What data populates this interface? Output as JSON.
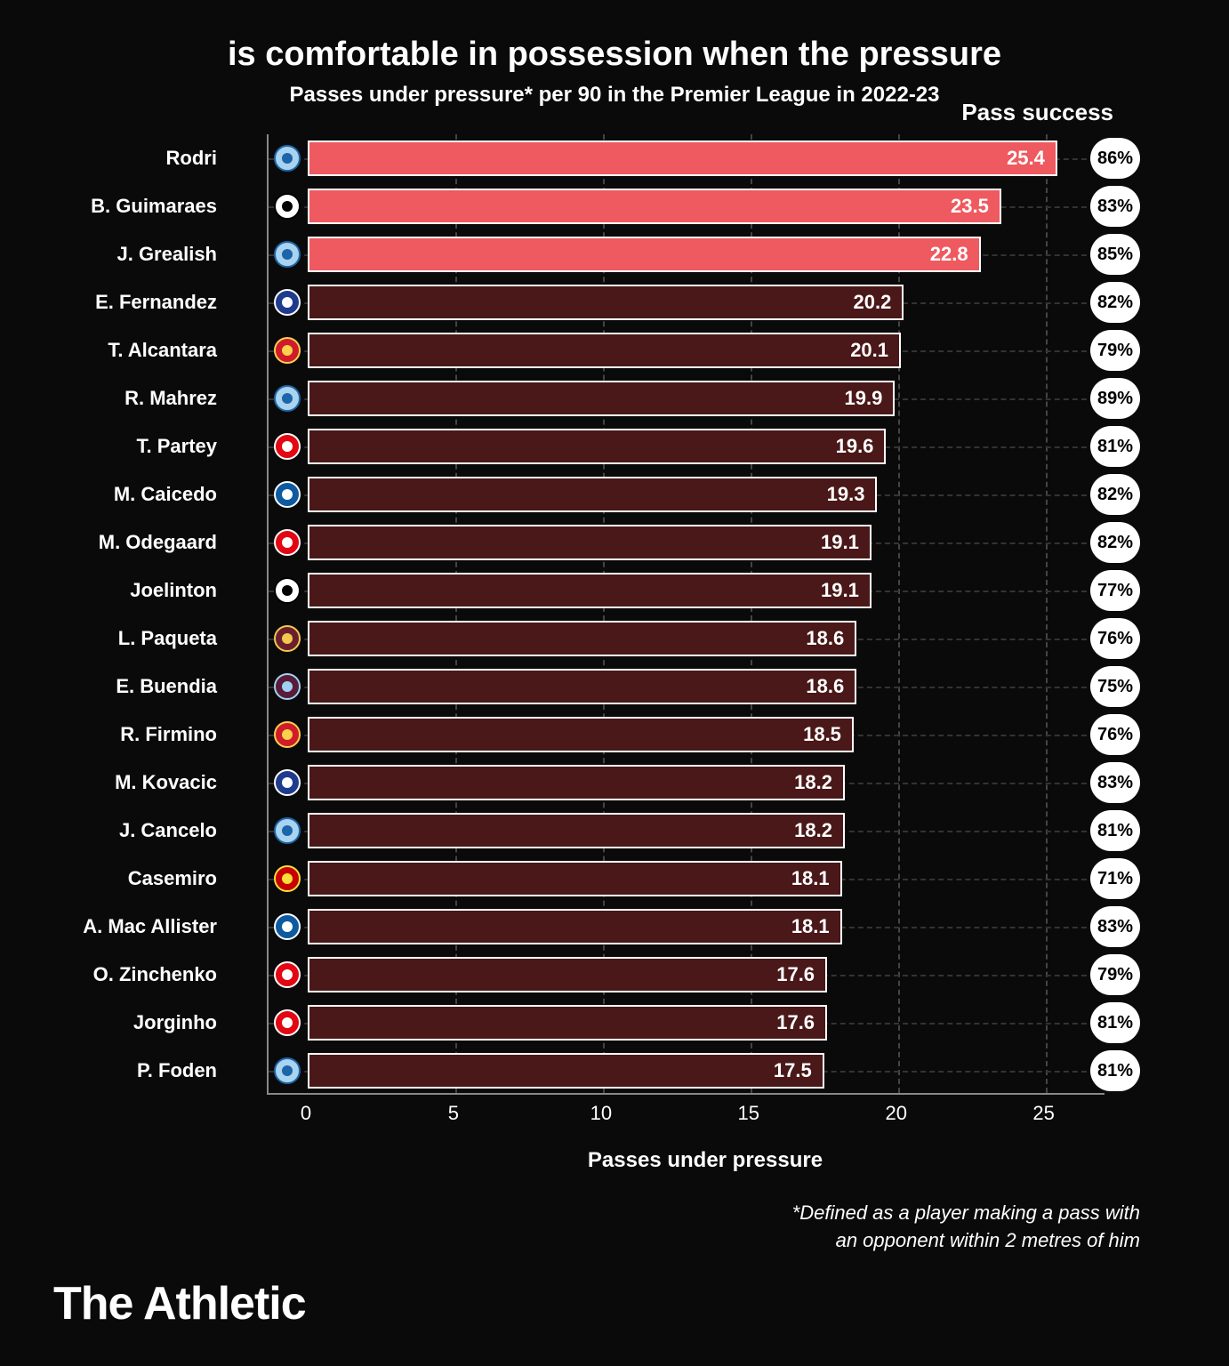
{
  "title": "is comfortable in possession when the pressure",
  "subtitle": "Passes under pressure* per 90 in the Premier League in 2022-23",
  "pass_success_header": "Pass success",
  "x_axis_label": "Passes under pressure",
  "footnote_line1": "*Defined as a player making a pass with",
  "footnote_line2": "an opponent within 2 metres of him",
  "brand": "The Athletic",
  "chart": {
    "type": "bar",
    "x_max": 27,
    "x_ticks": [
      0,
      5,
      10,
      15,
      20,
      25
    ],
    "bar_border": "#ffffff",
    "highlight_color": "#ee5a5f",
    "normal_color": "#4a1818",
    "grid_color": "#444444",
    "row_grid_color": "#333333",
    "pill_bg": "#ffffff",
    "pill_text": "#000000",
    "players": [
      {
        "name": "Rodri",
        "value": 25.4,
        "success": "86%",
        "highlight": true,
        "badge_bg": "#a8d4ef",
        "badge_fg": "#1d64a8"
      },
      {
        "name": "B. Guimaraes",
        "value": 23.5,
        "success": "83%",
        "highlight": true,
        "badge_bg": "#ffffff",
        "badge_fg": "#000000"
      },
      {
        "name": "J. Grealish",
        "value": 22.8,
        "success": "85%",
        "highlight": true,
        "badge_bg": "#a8d4ef",
        "badge_fg": "#1d64a8"
      },
      {
        "name": "E. Fernandez",
        "value": 20.2,
        "success": "82%",
        "highlight": false,
        "badge_bg": "#1f3b8e",
        "badge_fg": "#ffffff"
      },
      {
        "name": "T. Alcantara",
        "value": 20.1,
        "success": "79%",
        "highlight": false,
        "badge_bg": "#d01b2a",
        "badge_fg": "#f7d24b"
      },
      {
        "name": "R. Mahrez",
        "value": 19.9,
        "success": "89%",
        "highlight": false,
        "badge_bg": "#a8d4ef",
        "badge_fg": "#1d64a8"
      },
      {
        "name": "T. Partey",
        "value": 19.6,
        "success": "81%",
        "highlight": false,
        "badge_bg": "#e30613",
        "badge_fg": "#ffffff"
      },
      {
        "name": "M. Caicedo",
        "value": 19.3,
        "success": "82%",
        "highlight": false,
        "badge_bg": "#0e5aa0",
        "badge_fg": "#ffffff"
      },
      {
        "name": "M. Odegaard",
        "value": 19.1,
        "success": "82%",
        "highlight": false,
        "badge_bg": "#e30613",
        "badge_fg": "#ffffff"
      },
      {
        "name": "Joelinton",
        "value": 19.1,
        "success": "77%",
        "highlight": false,
        "badge_bg": "#ffffff",
        "badge_fg": "#000000"
      },
      {
        "name": "L. Paqueta",
        "value": 18.6,
        "success": "76%",
        "highlight": false,
        "badge_bg": "#6b1f2e",
        "badge_fg": "#f2c94c"
      },
      {
        "name": "E. Buendia",
        "value": 18.6,
        "success": "75%",
        "highlight": false,
        "badge_bg": "#5a1a3a",
        "badge_fg": "#a0d2f0"
      },
      {
        "name": "R. Firmino",
        "value": 18.5,
        "success": "76%",
        "highlight": false,
        "badge_bg": "#d01b2a",
        "badge_fg": "#f7d24b"
      },
      {
        "name": "M. Kovacic",
        "value": 18.2,
        "success": "83%",
        "highlight": false,
        "badge_bg": "#1f3b8e",
        "badge_fg": "#ffffff"
      },
      {
        "name": "J. Cancelo",
        "value": 18.2,
        "success": "81%",
        "highlight": false,
        "badge_bg": "#a8d4ef",
        "badge_fg": "#1d64a8"
      },
      {
        "name": "Casemiro",
        "value": 18.1,
        "success": "71%",
        "highlight": false,
        "badge_bg": "#c70101",
        "badge_fg": "#f7e03a"
      },
      {
        "name": "A. Mac Allister",
        "value": 18.1,
        "success": "83%",
        "highlight": false,
        "badge_bg": "#0e5aa0",
        "badge_fg": "#ffffff"
      },
      {
        "name": "O. Zinchenko",
        "value": 17.6,
        "success": "79%",
        "highlight": false,
        "badge_bg": "#e30613",
        "badge_fg": "#ffffff"
      },
      {
        "name": "Jorginho",
        "value": 17.6,
        "success": "81%",
        "highlight": false,
        "badge_bg": "#e30613",
        "badge_fg": "#ffffff"
      },
      {
        "name": "P. Foden",
        "value": 17.5,
        "success": "81%",
        "highlight": false,
        "badge_bg": "#a8d4ef",
        "badge_fg": "#1d64a8"
      }
    ]
  }
}
